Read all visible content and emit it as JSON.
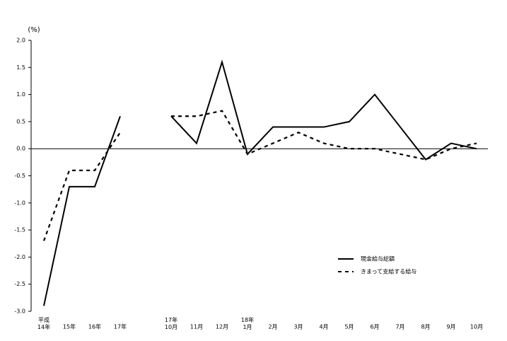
{
  "chart_data": {
    "type": "line",
    "y_unit": "(%)",
    "categories": [
      "平成\n14年",
      "15年",
      "16年",
      "17年",
      null,
      "17年\n10月",
      "11月",
      "12月",
      "18年\n1月",
      "2月",
      "3月",
      "4月",
      "5月",
      "6月",
      "7月",
      "8月",
      "9月",
      "10月"
    ],
    "series": [
      {
        "name": "現金給与総額",
        "color": "#000000",
        "dash": "solid",
        "values": [
          -2.9,
          -0.7,
          -0.7,
          0.6,
          null,
          0.6,
          0.1,
          1.6,
          -0.1,
          0.4,
          0.4,
          0.4,
          0.5,
          1.0,
          0.4,
          -0.2,
          0.1,
          0.0
        ]
      },
      {
        "name": "きまって支給する給与",
        "color": "#000000",
        "dash": "dashed",
        "values": [
          -1.7,
          -0.4,
          -0.4,
          0.3,
          null,
          0.6,
          0.6,
          0.7,
          -0.1,
          0.1,
          0.3,
          0.1,
          0.0,
          0.0,
          -0.1,
          -0.2,
          0.0,
          0.1
        ]
      }
    ],
    "ylim": [
      -3,
      2
    ],
    "yticks": [
      {
        "value": -3,
        "label": "-3.0"
      },
      -2.5,
      {
        "value": -2,
        "label": "-2.0"
      },
      -1.5,
      {
        "value": -1,
        "label": "-1.0"
      },
      -0.5,
      {
        "value": 0,
        "label": "0.0"
      },
      0.5,
      {
        "value": 1,
        "label": "1.0"
      },
      1.5,
      {
        "value": 2,
        "label": "2.0"
      }
    ],
    "legend": "lower-right"
  }
}
